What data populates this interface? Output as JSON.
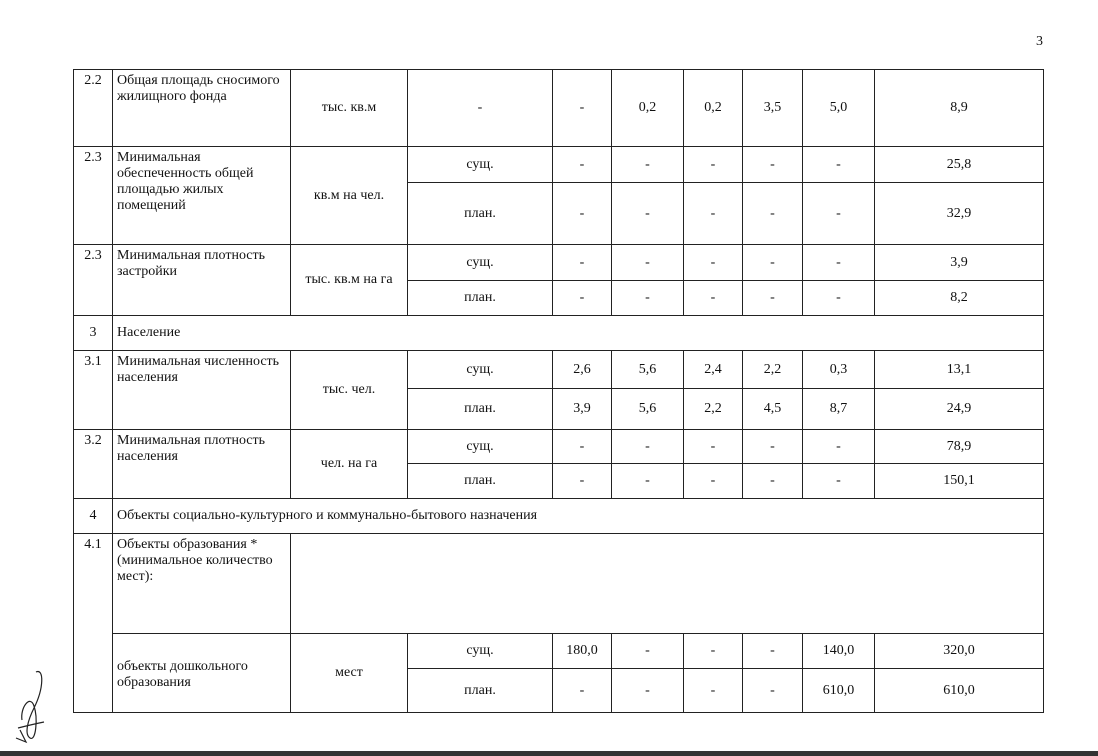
{
  "page_number": "3",
  "rows": [
    {
      "num": "2.2",
      "name": "Общая площадь сносимого жилищного фонда",
      "unit": "тыс. кв.м",
      "lines": [
        {
          "seg": "-",
          "values": [
            "-",
            "0,2",
            "0,2",
            "3,5",
            "5,0"
          ],
          "total": "8,9"
        }
      ]
    },
    {
      "num": "2.3",
      "name": "Минимальная обеспеченность общей площадью жилых помещений",
      "unit": "кв.м на чел.",
      "lines": [
        {
          "seg": "сущ.",
          "values": [
            "-",
            "-",
            "-",
            "-",
            "-"
          ],
          "total": "25,8"
        },
        {
          "seg": "план.",
          "values": [
            "-",
            "-",
            "-",
            "-",
            "-"
          ],
          "total": "32,9"
        }
      ]
    },
    {
      "num": "2.3",
      "name": "Минимальная плотность застройки",
      "unit": "тыс. кв.м на га",
      "lines": [
        {
          "seg": "сущ.",
          "values": [
            "-",
            "-",
            "-",
            "-",
            "-"
          ],
          "total": "3,9"
        },
        {
          "seg": "план.",
          "values": [
            "-",
            "-",
            "-",
            "-",
            "-"
          ],
          "total": "8,2"
        }
      ]
    },
    {
      "num": "3",
      "section": "Население"
    },
    {
      "num": "3.1",
      "name": "Минимальная численность населения",
      "unit": "тыс. чел.",
      "lines": [
        {
          "seg": "сущ.",
          "values": [
            "2,6",
            "5,6",
            "2,4",
            "2,2",
            "0,3"
          ],
          "total": "13,1"
        },
        {
          "seg": "план.",
          "values": [
            "3,9",
            "5,6",
            "2,2",
            "4,5",
            "8,7"
          ],
          "total": "24,9"
        }
      ]
    },
    {
      "num": "3.2",
      "name": "Минимальная плотность населения",
      "unit": "чел. на га",
      "lines": [
        {
          "seg": "сущ.",
          "values": [
            "-",
            "-",
            "-",
            "-",
            "-"
          ],
          "total": "78,9"
        },
        {
          "seg": "план.",
          "values": [
            "-",
            "-",
            "-",
            "-",
            "-"
          ],
          "total": "150,1"
        }
      ]
    },
    {
      "num": "4",
      "section": "Объекты социально-культурного и коммунально-бытового назначения"
    },
    {
      "num": "4.1",
      "group": "Объекты образования * (минимальное количество мест):",
      "sub": {
        "name": "объекты дошкольного образования",
        "unit": "мест",
        "lines": [
          {
            "seg": "сущ.",
            "values": [
              "180,0",
              "-",
              "-",
              "-",
              "140,0"
            ],
            "total": "320,0"
          },
          {
            "seg": "план.",
            "values": [
              "-",
              "-",
              "-",
              "-",
              "610,0"
            ],
            "total": "610,0"
          }
        ]
      }
    }
  ]
}
